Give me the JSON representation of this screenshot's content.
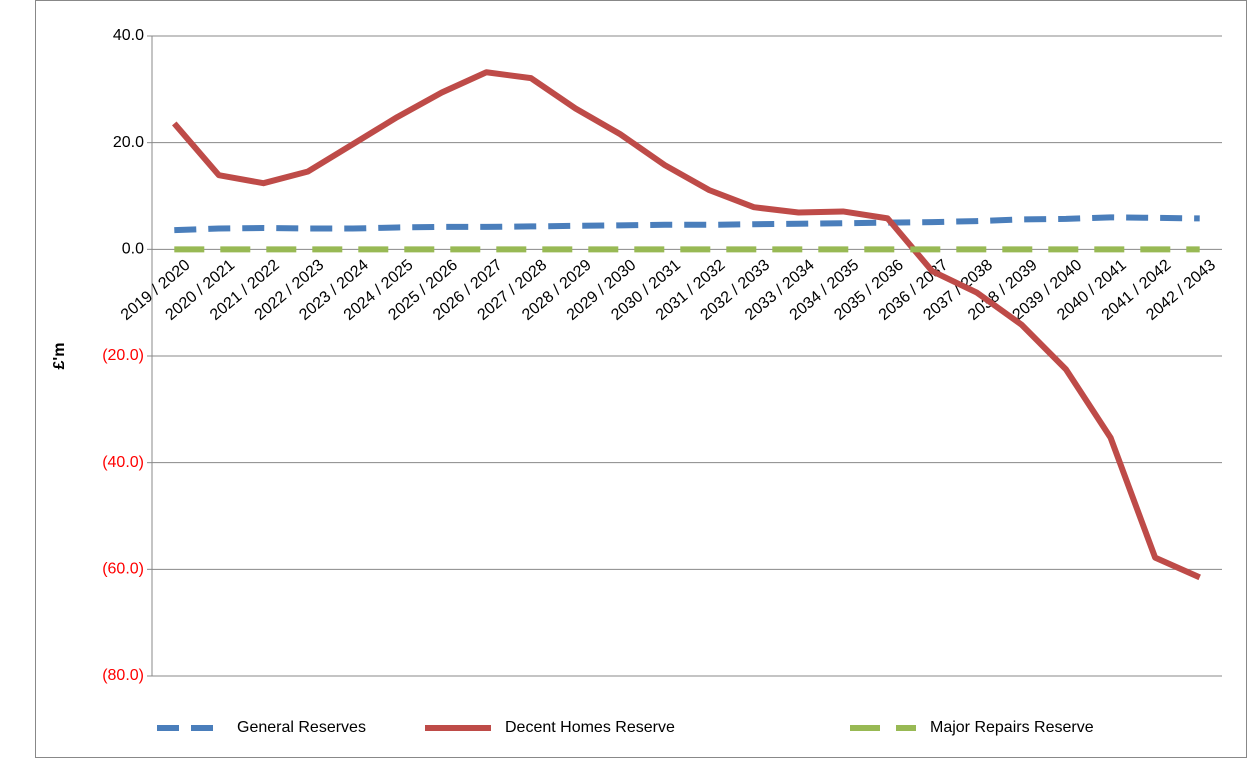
{
  "chart_data": {
    "type": "line",
    "y_label": "£'m",
    "categories": [
      "2019 / 2020",
      "2020 / 2021",
      "2021 / 2022",
      "2022 / 2023",
      "2023 / 2024",
      "2024 / 2025",
      "2025 / 2026",
      "2026 / 2027",
      "2027 / 2028",
      "2028 / 2029",
      "2029 / 2030",
      "2030 / 2031",
      "2031 / 2032",
      "2032 / 2033",
      "2033 / 2034",
      "2034 / 2035",
      "2035 / 2036",
      "2036 / 2037",
      "2037 / 2038",
      "2038 / 2039",
      "2039 / 2040",
      "2040 / 2041",
      "2041 / 2042",
      "2042 / 2043"
    ],
    "series": [
      {
        "name": "General Reserves",
        "color": "#4a7ebb",
        "dash": "dashed",
        "values": [
          3.6,
          3.9,
          4.0,
          3.9,
          3.9,
          4.1,
          4.2,
          4.2,
          4.3,
          4.4,
          4.5,
          4.6,
          4.6,
          4.7,
          4.8,
          4.9,
          5.0,
          5.1,
          5.3,
          5.6,
          5.7,
          6.0,
          5.9,
          5.8
        ]
      },
      {
        "name": "Decent Homes Reserve",
        "color": "#be4b48",
        "dash": "solid",
        "values": [
          23.6,
          13.9,
          12.4,
          14.6,
          19.7,
          24.8,
          29.4,
          33.2,
          32.1,
          26.4,
          21.6,
          15.8,
          11.1,
          7.9,
          6.9,
          7.1,
          5.8,
          -4.1,
          -8.1,
          -14.1,
          -22.5,
          -35.3,
          -57.8,
          -61.5
        ]
      },
      {
        "name": "Major Repairs Reserve",
        "color": "#98b954",
        "dash": "dashed-wide",
        "values": [
          0,
          0,
          0,
          0,
          0,
          0,
          0,
          0,
          0,
          0,
          0,
          0,
          0,
          0,
          0,
          0,
          0,
          0,
          0,
          0,
          0,
          0,
          0,
          0
        ]
      }
    ],
    "ylim": [
      -80,
      40
    ],
    "yticks": [
      {
        "value": 40,
        "label": "40.0"
      },
      {
        "value": 20,
        "label": "20.0"
      },
      {
        "value": 0,
        "label": "0.0"
      },
      {
        "value": -20,
        "label": "(20.0)"
      },
      {
        "value": -40,
        "label": "(40.0)"
      },
      {
        "value": -60,
        "label": "(60.0)"
      },
      {
        "value": -80,
        "label": "(80.0)"
      }
    ],
    "negative_label_color": "#ff0000",
    "grid": true,
    "legend": "bottom"
  }
}
